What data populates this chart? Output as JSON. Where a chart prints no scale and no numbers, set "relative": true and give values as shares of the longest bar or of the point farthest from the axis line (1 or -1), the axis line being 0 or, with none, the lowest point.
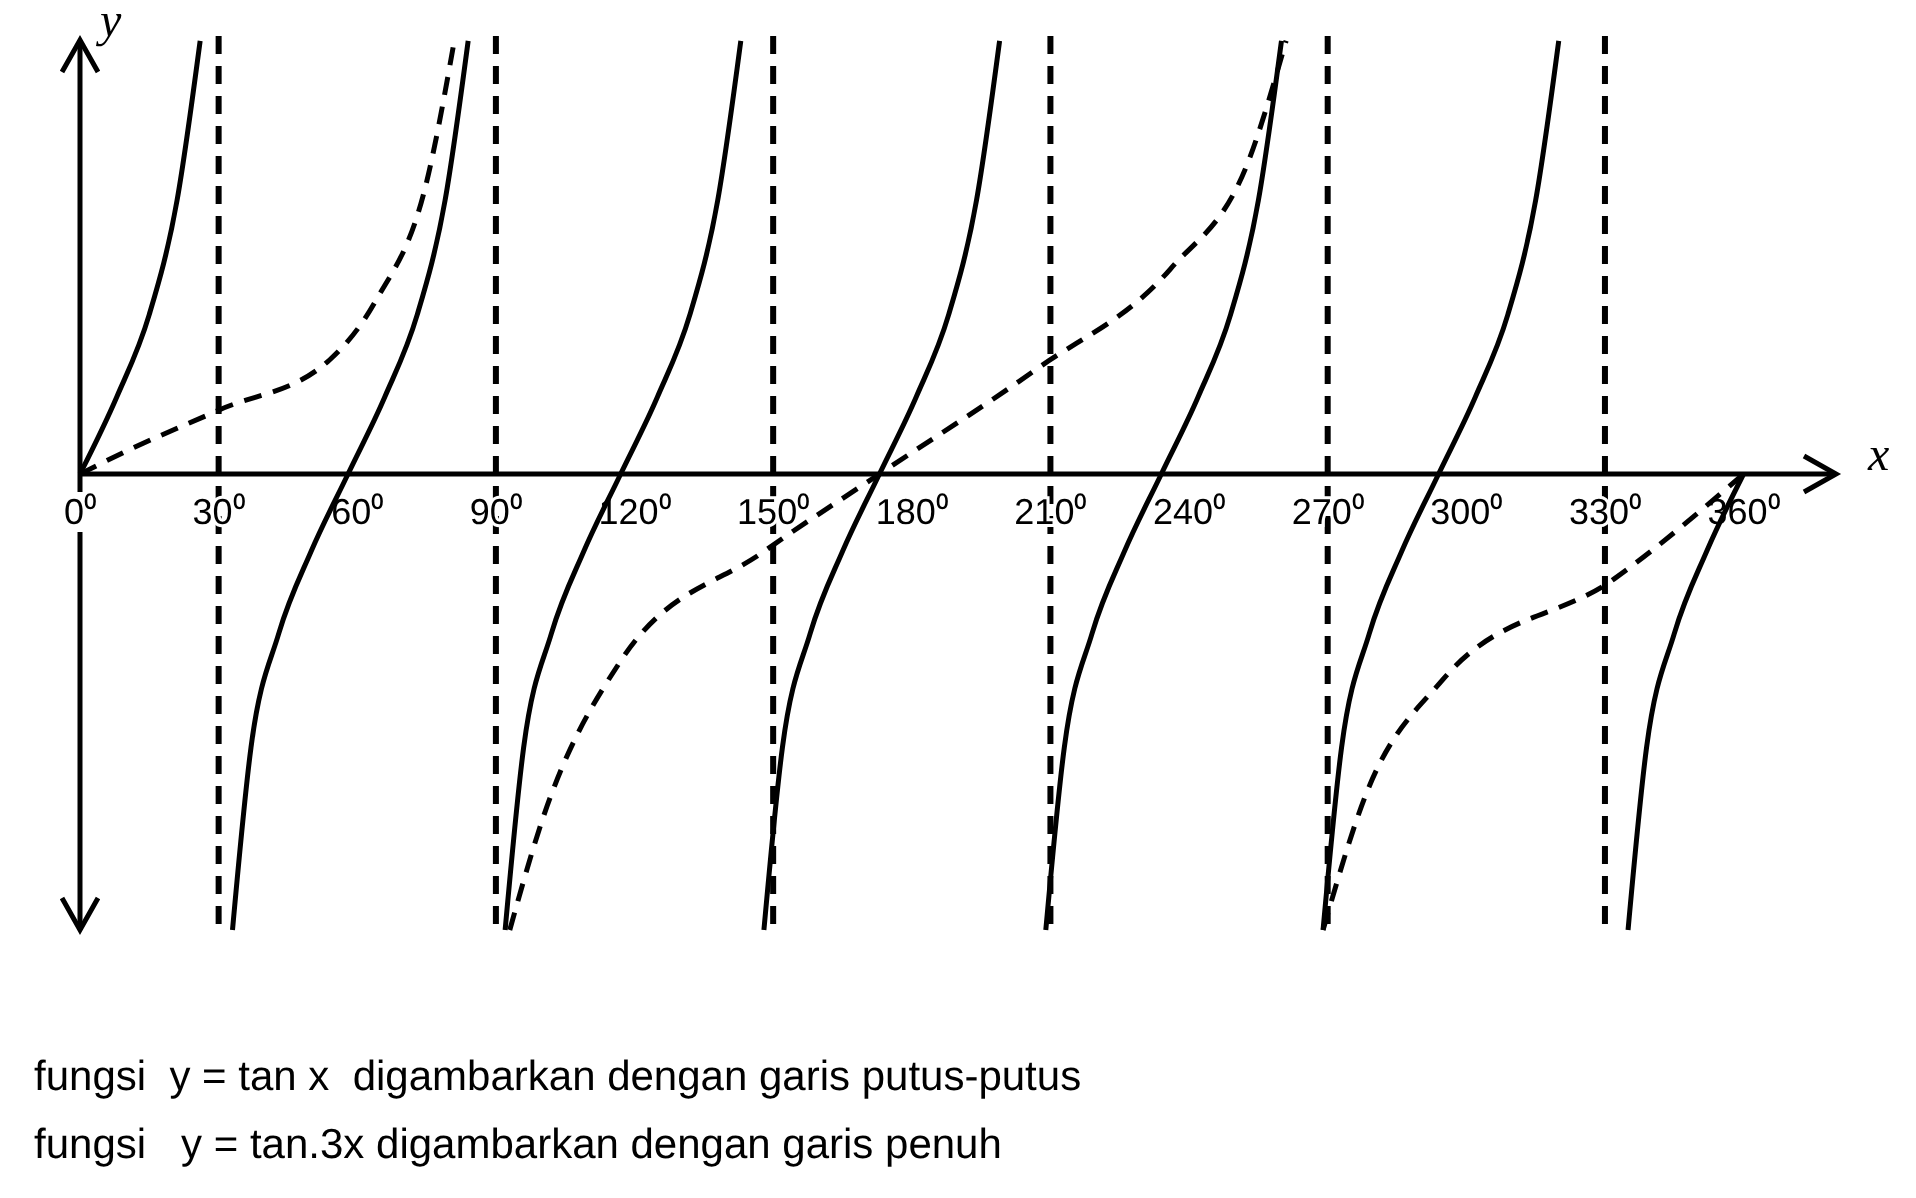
{
  "chart_data": {
    "type": "line",
    "relative": true,
    "xlabel": "x",
    "ylabel": "y",
    "tick_labels": "x",
    "grid": false,
    "xlim": [
      0,
      380
    ],
    "xticks": [
      {
        "value": 0,
        "label": "0⁰"
      },
      {
        "value": 30,
        "label": "30⁰"
      },
      {
        "value": 60,
        "label": "60⁰"
      },
      {
        "value": 90,
        "label": "90⁰"
      },
      {
        "value": 120,
        "label": "120⁰"
      },
      {
        "value": 150,
        "label": "150⁰"
      },
      {
        "value": 180,
        "label": "180⁰"
      },
      {
        "value": 210,
        "label": "210⁰"
      },
      {
        "value": 240,
        "label": "240⁰"
      },
      {
        "value": 270,
        "label": "270⁰"
      },
      {
        "value": 300,
        "label": "300⁰"
      },
      {
        "value": 330,
        "label": "330⁰"
      },
      {
        "value": 360,
        "label": "360⁰"
      }
    ],
    "series": [
      {
        "color": "#000000",
        "line_style": "dashed",
        "x": [
          0,
          10,
          30,
          54,
          64,
          75,
          81,
          85,
          93,
          100,
          117,
          148,
          173,
          207,
          236,
          253,
          261,
          265,
          269,
          278,
          295,
          332,
          360
        ],
        "values": [
          0,
          0.05,
          0.14,
          0.25,
          0.38,
          0.64,
          0.95,
          null,
          -1,
          -0.76,
          -0.41,
          -0.17,
          0,
          0.23,
          0.45,
          0.69,
          0.95,
          null,
          -1,
          -0.71,
          -0.45,
          -0.23,
          0
        ]
      },
      {
        "color": "#000000",
        "line_style": "solid",
        "x": [
          0,
          8,
          15,
          21,
          26,
          30,
          33,
          37,
          43,
          50,
          58,
          66,
          73,
          79,
          84,
          88,
          92,
          96,
          102,
          109,
          117,
          125,
          132,
          138,
          143,
          146,
          148,
          152,
          158,
          165,
          173,
          181,
          188,
          194,
          199,
          204,
          209,
          213,
          219,
          226,
          234,
          242,
          249,
          255,
          260,
          265,
          269,
          273,
          279,
          286,
          294,
          302,
          309,
          315,
          320,
          328,
          335,
          339,
          345,
          352,
          360
        ],
        "values": [
          0,
          0.17,
          0.35,
          0.6,
          0.95,
          null,
          -1,
          -0.6,
          -0.35,
          -0.17,
          0,
          0.17,
          0.35,
          0.6,
          0.95,
          null,
          -1,
          -0.6,
          -0.35,
          -0.17,
          0,
          0.17,
          0.35,
          0.6,
          0.95,
          null,
          -1,
          -0.6,
          -0.35,
          -0.17,
          0,
          0.17,
          0.35,
          0.6,
          0.95,
          null,
          -1,
          -0.6,
          -0.35,
          -0.17,
          0,
          0.17,
          0.35,
          0.6,
          0.95,
          null,
          -1,
          -0.6,
          -0.35,
          -0.17,
          0,
          0.17,
          0.35,
          0.6,
          0.95,
          null,
          -1,
          -0.6,
          -0.35,
          -0.17,
          0
        ]
      }
    ],
    "ref_lines": [
      {
        "axis": "x",
        "value": 30,
        "line_style": "dashed",
        "color": "#000000"
      },
      {
        "axis": "x",
        "value": 90,
        "line_style": "dashed",
        "color": "#000000"
      },
      {
        "axis": "x",
        "value": 150,
        "line_style": "dashed",
        "color": "#000000"
      },
      {
        "axis": "x",
        "value": 210,
        "line_style": "dashed",
        "color": "#000000"
      },
      {
        "axis": "x",
        "value": 270,
        "line_style": "dashed",
        "color": "#000000"
      },
      {
        "axis": "x",
        "value": 330,
        "line_style": "dashed",
        "color": "#000000"
      }
    ],
    "annotations": [
      "fungsi  y = tan x  digambarkan dengan garis putus-putus",
      "fungsi   y = tan.3x digambarkan dengan garis penuh"
    ]
  }
}
